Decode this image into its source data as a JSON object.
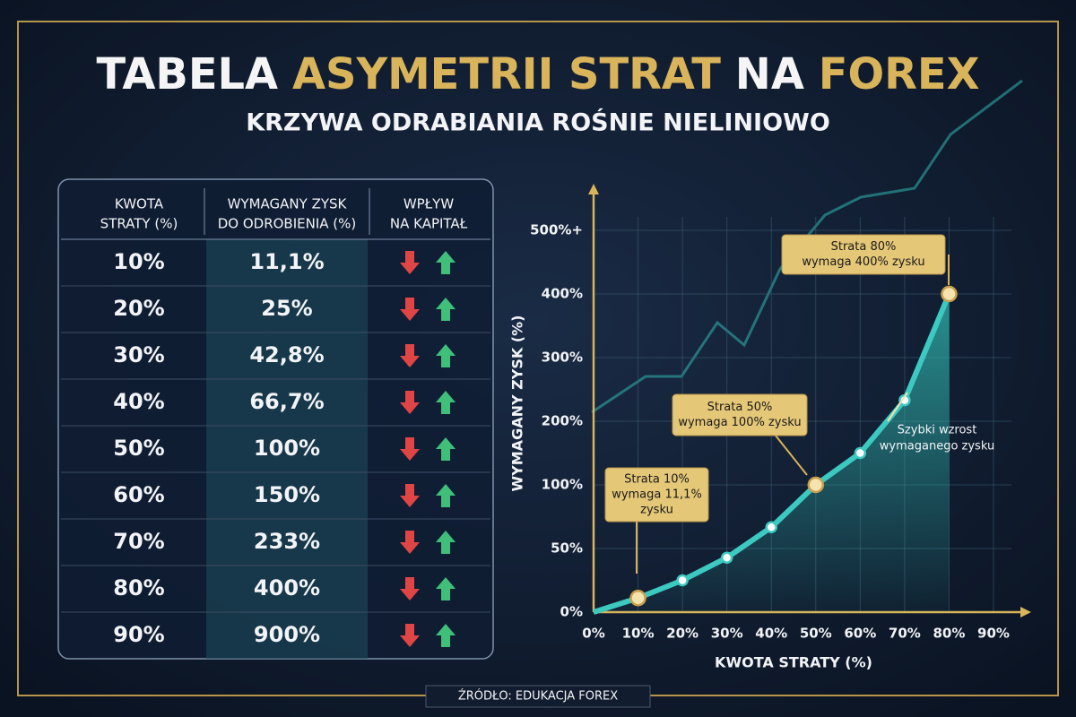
{
  "header": {
    "title_parts": [
      "TABELA",
      "ASYMETRII STRAT",
      "NA",
      "FOREX"
    ],
    "subtitle": "KRZYWA ODRABIANIA ROŚNIE NIELINIOWO"
  },
  "table": {
    "columns": [
      [
        "KWOTA",
        "STRATY (%)"
      ],
      [
        "WYMAGANY ZYSK",
        "DO ODROBIENIA (%)"
      ],
      [
        "WPŁYW",
        "NA KAPITAŁ"
      ]
    ],
    "rows": [
      [
        "10%",
        "11,1%"
      ],
      [
        "20%",
        "25%"
      ],
      [
        "30%",
        "42,8%"
      ],
      [
        "40%",
        "66,7%"
      ],
      [
        "50%",
        "100%"
      ],
      [
        "60%",
        "150%"
      ],
      [
        "70%",
        "233%"
      ],
      [
        "80%",
        "400%"
      ],
      [
        "90%",
        "900%"
      ]
    ]
  },
  "chart_data": {
    "type": "line",
    "x_label": "KWOTA STRATY (%)",
    "y_label": "WYMAGANY ZYSK (%)",
    "color": "#3cc9c0",
    "x": [
      0,
      10,
      20,
      30,
      40,
      50,
      60,
      70,
      80
    ],
    "values": [
      0,
      11.1,
      25,
      42.8,
      66.7,
      100,
      150,
      233,
      400
    ],
    "xlim": [
      0,
      90
    ],
    "xticks": [
      {
        "value": 0,
        "label": "0%"
      },
      {
        "value": 10,
        "label": "10%"
      },
      {
        "value": 20,
        "label": "20%"
      },
      {
        "value": 30,
        "label": "30%"
      },
      {
        "value": 40,
        "label": "40%"
      },
      {
        "value": 50,
        "label": "50%"
      },
      {
        "value": 60,
        "label": "60%"
      },
      {
        "value": 70,
        "label": "70%"
      },
      {
        "value": 80,
        "label": "80%"
      },
      {
        "value": 90,
        "label": "90%"
      }
    ],
    "ylim": [
      0,
      500
    ],
    "yticks": [
      {
        "value": 0,
        "label": "0%"
      },
      {
        "value": 50,
        "label": "50%"
      },
      {
        "value": 100,
        "label": "100%"
      },
      {
        "value": 200,
        "label": "200%"
      },
      {
        "value": 300,
        "label": "300%"
      },
      {
        "value": 400,
        "label": "400%"
      },
      {
        "value": 500,
        "label": "500%+"
      }
    ],
    "grid": true,
    "annotations": [
      {
        "lines": [
          "Strata 10%",
          "wymaga 11,1%",
          "zysku"
        ]
      },
      {
        "lines": [
          "Strata 50%",
          "wymaga 100% zysku"
        ]
      },
      {
        "lines": [
          "Strata 80%",
          "wymaga 400% zysku"
        ]
      },
      {
        "lines": [
          "Szybki wzrost",
          "wymaganego zysku"
        ]
      }
    ]
  },
  "footer": "ŹRÓDŁO: EDUKACJA FOREX"
}
